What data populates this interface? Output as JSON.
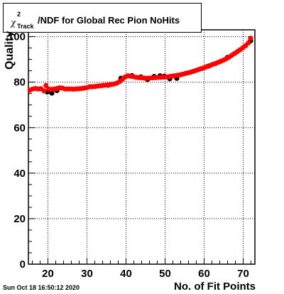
{
  "title": "/NDF for Global Rec Pion NoHits",
  "title_symbol": "χ",
  "title_sup": "2",
  "title_sub": "Track",
  "timestamp": "Sun Oct 18 16:50:12 2020",
  "chart_data": {
    "type": "scatter",
    "title": "χ²Track/NDF for Global Rec Pion NoHits",
    "xlabel": "No. of Fit Points",
    "ylabel": "Quality",
    "xlim": [
      15,
      73
    ],
    "ylim": [
      0,
      103
    ],
    "x_ticks": [
      20,
      30,
      40,
      50,
      60,
      70
    ],
    "y_ticks": [
      0,
      20,
      40,
      60,
      80,
      100
    ],
    "grid": true,
    "colors": {
      "red_series": "#ff0000",
      "black_series": "#000000"
    },
    "series": [
      {
        "color": "#ff0000",
        "x": [
          15.4,
          16.1,
          16.8,
          17.5,
          18.2,
          19.0,
          19.5,
          20.2,
          20.9,
          21.6,
          22.3,
          23.0,
          23.7,
          24.4,
          25.1,
          25.8,
          26.5,
          27.2,
          27.9,
          28.6,
          29.3,
          30.0,
          30.7,
          31.4,
          32.1,
          32.8,
          33.5,
          34.2,
          34.9,
          35.6,
          36.3,
          37.0,
          37.7,
          38.4,
          39.1,
          39.8,
          40.5,
          41.2,
          41.9,
          42.6,
          43.3,
          44.0,
          44.7,
          45.4,
          46.1,
          46.8,
          47.5,
          48.2,
          48.9,
          49.6,
          50.3,
          51.0,
          51.7,
          52.4,
          53.1,
          53.8,
          54.5,
          55.2,
          55.9,
          56.6,
          57.3,
          58.0,
          58.7,
          59.4,
          60.1,
          60.8,
          61.5,
          62.2,
          62.9,
          63.6,
          64.3,
          65.0,
          65.7,
          66.4,
          67.1,
          67.8,
          68.5,
          69.2,
          69.9,
          70.6,
          71.3,
          71.9
        ],
        "y": [
          76.5,
          77.0,
          77.2,
          77.0,
          77.1,
          76.2,
          78.5,
          77.0,
          76.8,
          77.0,
          77.2,
          77.5,
          77.4,
          77.0,
          77.0,
          77.0,
          76.9,
          77.0,
          77.1,
          77.2,
          77.4,
          77.6,
          78.0,
          78.0,
          78.1,
          78.3,
          78.4,
          78.6,
          78.7,
          78.8,
          79.0,
          79.2,
          79.6,
          80.3,
          81.3,
          82.3,
          82.8,
          82.6,
          82.4,
          82.1,
          82.0,
          81.9,
          81.8,
          81.7,
          81.8,
          81.9,
          82.0,
          82.1,
          82.1,
          82.2,
          82.3,
          82.4,
          82.6,
          82.8,
          83.0,
          83.2,
          83.5,
          83.8,
          84.1,
          84.4,
          84.8,
          85.2,
          85.6,
          86.0,
          86.4,
          86.9,
          87.3,
          87.8,
          88.2,
          88.7,
          89.2,
          89.7,
          90.3,
          91.0,
          91.8,
          92.6,
          93.4,
          94.2,
          95.1,
          96.0,
          97.2,
          99.3
        ]
      },
      {
        "color": "#000000",
        "x": [
          19.8,
          21.0,
          22.3,
          35.5,
          38.7,
          41.5,
          43.8,
          45.5,
          47.2,
          48.7,
          49.8,
          51.2,
          53.0,
          61.0,
          66.0,
          71.9
        ],
        "y": [
          76.0,
          75.5,
          76.6,
          79.0,
          82.0,
          83.2,
          82.6,
          81.5,
          82.8,
          83.1,
          82.9,
          81.8,
          82.0,
          87.3,
          91.2,
          98.5
        ]
      }
    ]
  }
}
